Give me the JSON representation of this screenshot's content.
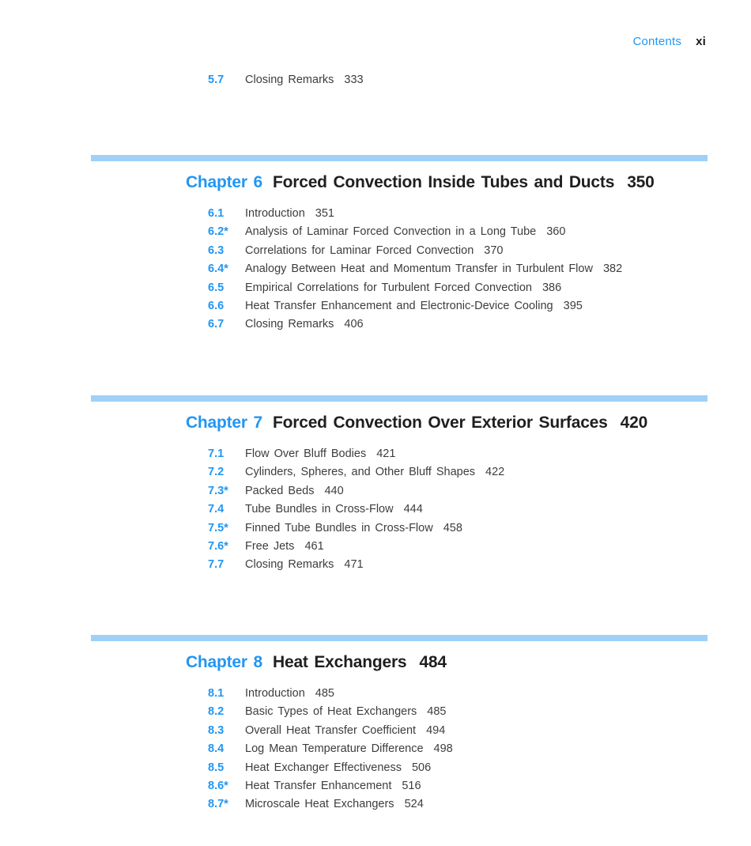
{
  "page": {
    "running_head": {
      "contents_label": "Contents",
      "folio": "xi"
    },
    "orphan_section": {
      "number": "5.7",
      "title": "Closing Remarks",
      "page": "333"
    },
    "chapters": [
      {
        "label": "Chapter 6",
        "title": "Forced Convection Inside Tubes and Ducts",
        "page": "350",
        "sections": [
          {
            "number": "6.1",
            "title": "Introduction",
            "page": "351"
          },
          {
            "number": "6.2*",
            "title": "Analysis of Laminar Forced Convection in a Long Tube",
            "page": "360"
          },
          {
            "number": "6.3",
            "title": "Correlations for Laminar Forced Convection",
            "page": "370"
          },
          {
            "number": "6.4*",
            "title": "Analogy Between Heat and Momentum Transfer in Turbulent Flow",
            "page": "382"
          },
          {
            "number": "6.5",
            "title": "Empirical Correlations for Turbulent Forced Convection",
            "page": "386"
          },
          {
            "number": "6.6",
            "title": "Heat Transfer Enhancement and Electronic-Device Cooling",
            "page": "395"
          },
          {
            "number": "6.7",
            "title": "Closing Remarks",
            "page": "406"
          }
        ]
      },
      {
        "label": "Chapter 7",
        "title": "Forced Convection Over Exterior Surfaces",
        "page": "420",
        "sections": [
          {
            "number": "7.1",
            "title": "Flow Over Bluff Bodies",
            "page": "421"
          },
          {
            "number": "7.2",
            "title": "Cylinders, Spheres, and Other Bluff Shapes",
            "page": "422"
          },
          {
            "number": "7.3*",
            "title": "Packed Beds",
            "page": "440"
          },
          {
            "number": "7.4",
            "title": "Tube Bundles in Cross-Flow",
            "page": "444"
          },
          {
            "number": "7.5*",
            "title": "Finned Tube Bundles in Cross-Flow",
            "page": "458"
          },
          {
            "number": "7.6*",
            "title": "Free Jets",
            "page": "461"
          },
          {
            "number": "7.7",
            "title": "Closing Remarks",
            "page": "471"
          }
        ]
      },
      {
        "label": "Chapter 8",
        "title": "Heat Exchangers",
        "page": "484",
        "sections": [
          {
            "number": "8.1",
            "title": "Introduction",
            "page": "485"
          },
          {
            "number": "8.2",
            "title": "Basic Types of Heat Exchangers",
            "page": "485"
          },
          {
            "number": "8.3",
            "title": "Overall Heat Transfer Coefficient",
            "page": "494"
          },
          {
            "number": "8.4",
            "title": "Log Mean Temperature Difference",
            "page": "498"
          },
          {
            "number": "8.5",
            "title": "Heat Exchanger Effectiveness",
            "page": "506"
          },
          {
            "number": "8.6*",
            "title": "Heat Transfer Enhancement",
            "page": "516"
          },
          {
            "number": "8.7*",
            "title": "Microscale Heat Exchangers",
            "page": "524"
          }
        ]
      }
    ],
    "colors": {
      "accent_blue": "#2196f3",
      "divider_bar_blue": "#9fd1f7",
      "body_text": "#3d3d3d",
      "heading_text": "#1f1f1f",
      "page_background": "#ffffff"
    }
  }
}
